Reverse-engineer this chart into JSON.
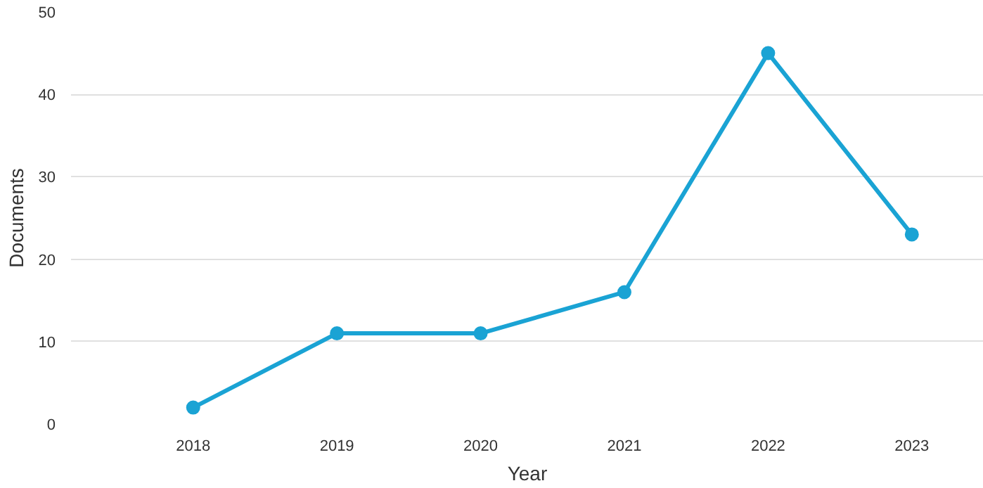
{
  "chart_data": {
    "type": "line",
    "xlabel": "Year",
    "ylabel": "Documents",
    "categories": [
      "2018",
      "2019",
      "2020",
      "2021",
      "2022",
      "2023"
    ],
    "series": [
      {
        "color": "#1aa3d4",
        "values": [
          2,
          11,
          11,
          16,
          45,
          23
        ]
      }
    ],
    "ylim": [
      0,
      50
    ],
    "yticks": [
      0,
      10,
      20,
      30,
      40,
      50
    ],
    "grid": "y",
    "marker": "circle",
    "line_style": "solid"
  }
}
